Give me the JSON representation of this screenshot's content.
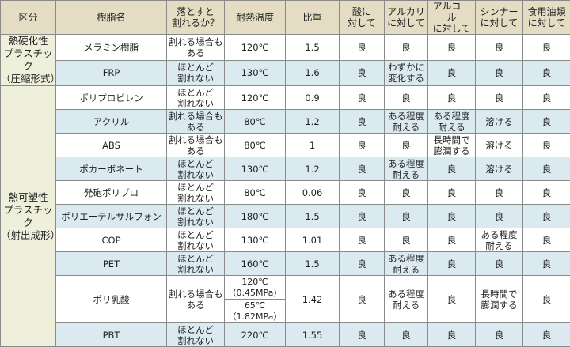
{
  "headers": [
    "区分",
    "樹脂名",
    "落とすと\n割れるか？",
    "耐熱温度",
    "比重",
    "酸に\n対して",
    "アルカリ\nに対して",
    "アルコール\nに対して",
    "シンナー\nに対して",
    "食用油類\nに対して"
  ],
  "categories": [
    {
      "label": "熱硬化性\nプラスチック\n（圧縮形式）",
      "rows": 2
    },
    {
      "label": "熱可塑性\nプラスチック\n（射出成形）",
      "rows": 10
    }
  ],
  "rows": [
    {
      "name": "メラミン樹脂",
      "drop": "割れる場合も\nある",
      "heat": "120℃",
      "gravity": "1.5",
      "acid": "良",
      "alkali": "良",
      "alcohol": "良",
      "thinner": "良",
      "oil": "良"
    },
    {
      "name": "FRP",
      "drop": "ほとんど\n割れない",
      "heat": "130℃",
      "gravity": "1.6",
      "acid": "良",
      "alkali": "わずかに\n変化する",
      "alcohol": "良",
      "thinner": "良",
      "oil": "良"
    },
    {
      "name": "ポリプロピレン",
      "drop": "ほとんど\n割れない",
      "heat": "120℃",
      "gravity": "0.9",
      "acid": "良",
      "alkali": "良",
      "alcohol": "良",
      "thinner": "良",
      "oil": "良"
    },
    {
      "name": "アクリル",
      "drop": "割れる場合も\nある",
      "heat": "80℃",
      "gravity": "1.2",
      "acid": "良",
      "alkali": "ある程度\n耐える",
      "alcohol": "ある程度\n耐える",
      "thinner": "溶ける",
      "oil": "良"
    },
    {
      "name": "ABS",
      "drop": "割れる場合も\nある",
      "heat": "80℃",
      "gravity": "1",
      "acid": "良",
      "alkali": "良",
      "alcohol": "長時間で\n膨潤する",
      "thinner": "溶ける",
      "oil": "良"
    },
    {
      "name": "ポカーボネート",
      "drop": "ほとんど\n割れない",
      "heat": "130℃",
      "gravity": "1.2",
      "acid": "良",
      "alkali": "ある程度\n耐える",
      "alcohol": "良",
      "thinner": "溶ける",
      "oil": "良"
    },
    {
      "name": "発砲ポリプロ",
      "drop": "ほとんど\n割れない",
      "heat": "80℃",
      "gravity": "0.06",
      "acid": "良",
      "alkali": "良",
      "alcohol": "良",
      "thinner": "良",
      "oil": "良"
    },
    {
      "name": "ポリエーテルサルフォン",
      "drop": "ほとんど\n割れない",
      "heat": "180℃",
      "gravity": "1.5",
      "acid": "良",
      "alkali": "良",
      "alcohol": "良",
      "thinner": "良",
      "oil": "良"
    },
    {
      "name": "COP",
      "drop": "ほとんど\n割れない",
      "heat": "130℃",
      "gravity": "1.01",
      "acid": "良",
      "alkali": "良",
      "alcohol": "良",
      "thinner": "ある程度\n耐える",
      "oil": "良"
    },
    {
      "name": "PET",
      "drop": "ほとんど\n割れない",
      "heat": "160℃",
      "gravity": "1.5",
      "acid": "良",
      "alkali": "ある程度\n耐える",
      "alcohol": "良",
      "thinner": "良",
      "oil": "良"
    },
    {
      "name": "ポリ乳酸",
      "drop": "割れる場合も\nある",
      "heat": [
        "120℃\n（0.45MPa）",
        "65℃\n（1.82MPa）"
      ],
      "gravity": "1.42",
      "acid": "良",
      "alkali": "ある程度\n耐える",
      "alcohol": "良",
      "thinner": "長時間で\n膨潤する",
      "oil": "良"
    },
    {
      "name": "PBT",
      "drop": "ほとんど\n割れない",
      "heat": "220℃",
      "gravity": "1.55",
      "acid": "良",
      "alkali": "良",
      "alcohol": "良",
      "thinner": "良",
      "oil": "良"
    }
  ],
  "colors": {
    "header": "#e4ddc3",
    "category": "#eef0dc",
    "row_alt": "#dbeaf0",
    "row": "#ffffff"
  }
}
